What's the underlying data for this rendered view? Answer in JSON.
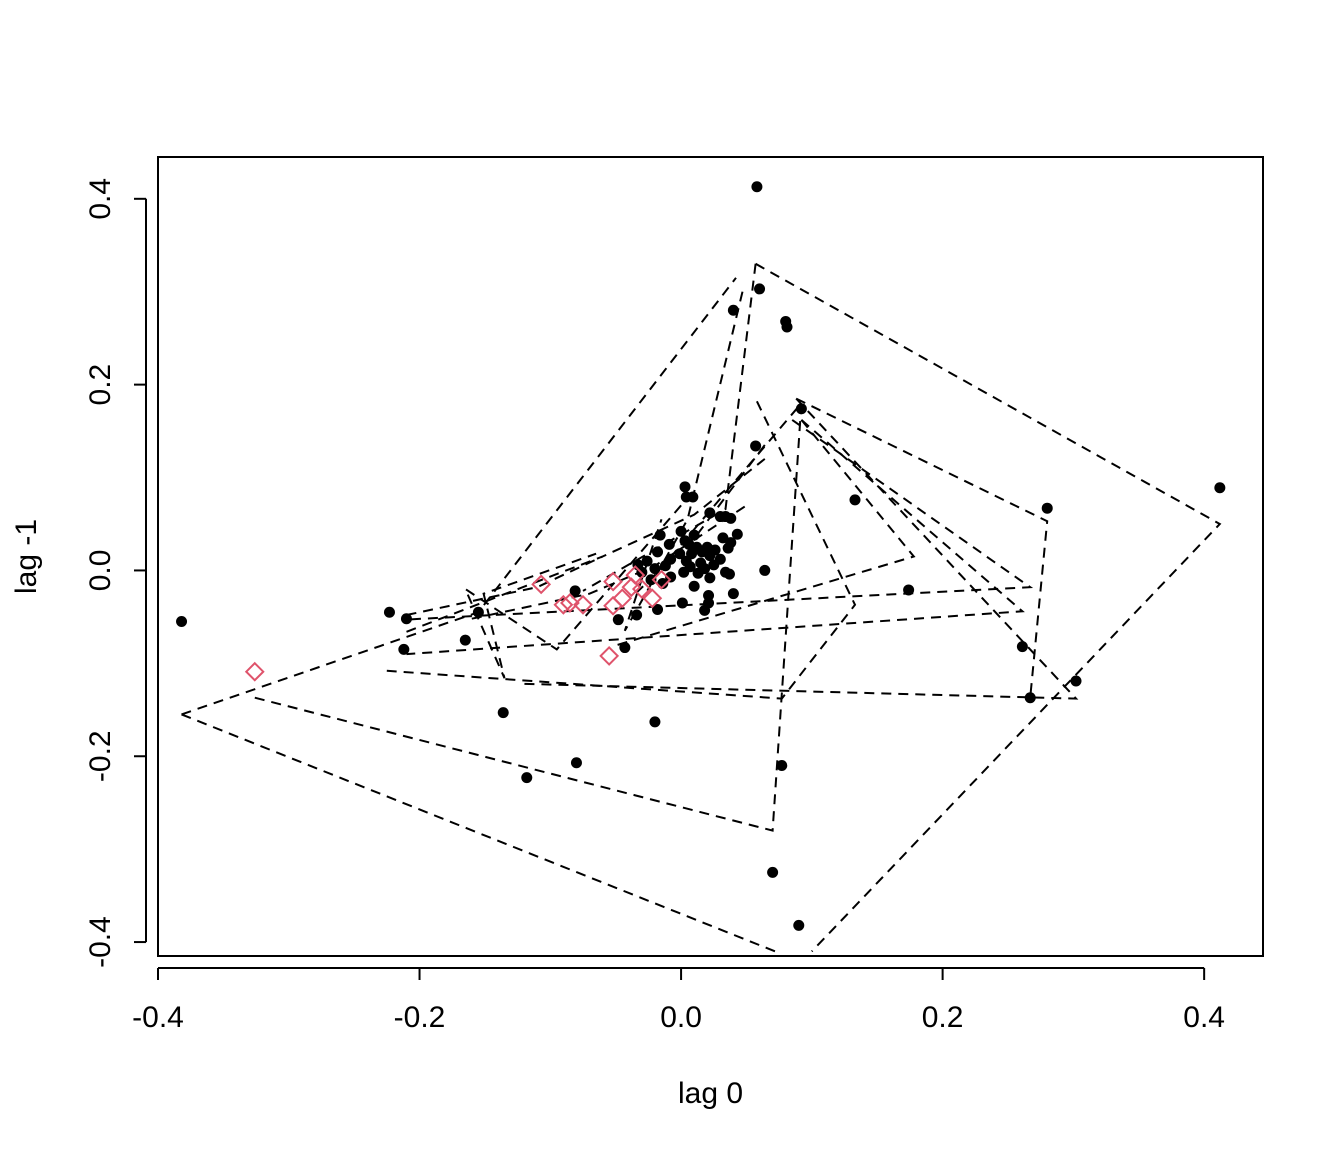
{
  "chart_data": {
    "type": "scatter",
    "title": "",
    "xlabel": "lag 0",
    "ylabel": "lag -1",
    "xlim": [
      -0.4,
      0.445
    ],
    "ylim": [
      -0.415,
      0.445
    ],
    "x_ticks": [
      -0.4,
      -0.2,
      0.0,
      0.2,
      0.4
    ],
    "y_ticks": [
      -0.4,
      -0.2,
      0.0,
      0.2,
      0.4
    ],
    "x_tick_labels": [
      "-0.4",
      "-0.2",
      "0.0",
      "0.2",
      "0.4"
    ],
    "y_tick_labels": [
      "-0.4",
      "-0.2",
      "0.0",
      "0.2",
      "0.4"
    ],
    "grid": false,
    "legend": "none",
    "colors": {
      "points": "#000000",
      "highlighted": "#df536b",
      "hull_lines": "#000000"
    },
    "series": [
      {
        "marker": "filled-circle",
        "points": [
          [
            0.058,
            0.413
          ],
          [
            0.06,
            0.303
          ],
          [
            0.04,
            0.28
          ],
          [
            0.08,
            0.268
          ],
          [
            0.081,
            0.262
          ],
          [
            0.092,
            0.174
          ],
          [
            0.057,
            0.134
          ],
          [
            0.412,
            0.089
          ],
          [
            0.003,
            0.09
          ],
          [
            0.133,
            0.076
          ],
          [
            0.004,
            0.079
          ],
          [
            0.009,
            0.079
          ],
          [
            0.28,
            0.067
          ],
          [
            0.022,
            0.062
          ],
          [
            0.03,
            0.058
          ],
          [
            0.034,
            0.058
          ],
          [
            0.038,
            0.056
          ],
          [
            0.0,
            0.042
          ],
          [
            0.043,
            0.039
          ],
          [
            -0.016,
            0.038
          ],
          [
            0.01,
            0.038
          ],
          [
            0.003,
            0.032
          ],
          [
            0.032,
            0.035
          ],
          [
            0.038,
            0.03
          ],
          [
            0.036,
            0.024
          ],
          [
            0.006,
            0.028
          ],
          [
            0.012,
            0.025
          ],
          [
            -0.009,
            0.028
          ],
          [
            0.02,
            0.025
          ],
          [
            0.026,
            0.022
          ],
          [
            0.016,
            0.02
          ],
          [
            -0.018,
            0.02
          ],
          [
            -0.001,
            0.018
          ],
          [
            0.008,
            0.018
          ],
          [
            0.022,
            0.016
          ],
          [
            0.03,
            0.012
          ],
          [
            -0.008,
            0.012
          ],
          [
            0.004,
            0.01
          ],
          [
            -0.026,
            0.01
          ],
          [
            0.015,
            0.008
          ],
          [
            0.025,
            0.006
          ],
          [
            -0.033,
            0.006
          ],
          [
            -0.012,
            0.005
          ],
          [
            0.007,
            0.004
          ],
          [
            0.018,
            0.002
          ],
          [
            0.064,
            0.0
          ],
          [
            -0.02,
            0.002
          ],
          [
            0.034,
            -0.002
          ],
          [
            -0.03,
            -0.002
          ],
          [
            0.002,
            -0.002
          ],
          [
            0.013,
            -0.003
          ],
          [
            0.037,
            -0.004
          ],
          [
            0.022,
            -0.008
          ],
          [
            -0.008,
            -0.007
          ],
          [
            -0.023,
            -0.01
          ],
          [
            -0.014,
            -0.014
          ],
          [
            0.01,
            -0.017
          ],
          [
            0.174,
            -0.021
          ],
          [
            0.04,
            -0.025
          ],
          [
            0.021,
            -0.027
          ],
          [
            0.001,
            -0.035
          ],
          [
            0.021,
            -0.035
          ],
          [
            -0.081,
            -0.022
          ],
          [
            -0.155,
            -0.045
          ],
          [
            -0.018,
            -0.042
          ],
          [
            0.018,
            -0.043
          ],
          [
            -0.034,
            -0.048
          ],
          [
            -0.048,
            -0.053
          ],
          [
            -0.223,
            -0.045
          ],
          [
            -0.21,
            -0.052
          ],
          [
            -0.165,
            -0.075
          ],
          [
            -0.382,
            -0.055
          ],
          [
            -0.212,
            -0.085
          ],
          [
            -0.043,
            -0.083
          ],
          [
            0.261,
            -0.082
          ],
          [
            0.267,
            -0.137
          ],
          [
            0.302,
            -0.119
          ],
          [
            -0.136,
            -0.153
          ],
          [
            -0.02,
            -0.163
          ],
          [
            -0.08,
            -0.207
          ],
          [
            0.077,
            -0.21
          ],
          [
            -0.118,
            -0.223
          ],
          [
            0.07,
            -0.325
          ],
          [
            0.09,
            -0.382
          ]
        ]
      },
      {
        "marker": "open-diamond",
        "points": [
          [
            -0.326,
            -0.109
          ],
          [
            -0.107,
            -0.015
          ],
          [
            -0.09,
            -0.037
          ],
          [
            -0.085,
            -0.035
          ],
          [
            -0.075,
            -0.037
          ],
          [
            -0.052,
            -0.012
          ],
          [
            -0.052,
            -0.038
          ],
          [
            -0.045,
            -0.03
          ],
          [
            -0.038,
            -0.018
          ],
          [
            -0.035,
            -0.005
          ],
          [
            -0.03,
            -0.02
          ],
          [
            -0.022,
            -0.03
          ],
          [
            -0.015,
            -0.01
          ],
          [
            -0.055,
            -0.092
          ]
        ]
      }
    ],
    "hull_lines": [
      [
        [
          0.057,
          0.33
        ],
        [
          0.412,
          0.05
        ],
        [
          0.1,
          -0.41
        ]
      ],
      [
        [
          0.057,
          0.33
        ],
        [
          0.034,
          0.066
        ],
        [
          -0.075,
          -0.022
        ]
      ],
      [
        [
          -0.382,
          -0.155
        ],
        [
          0.072,
          -0.41
        ]
      ],
      [
        [
          -0.382,
          -0.155
        ],
        [
          -0.155,
          -0.045
        ],
        [
          0.042,
          0.315
        ]
      ],
      [
        [
          0.088,
          0.185
        ],
        [
          0.28,
          0.053
        ],
        [
          0.267,
          -0.137
        ]
      ],
      [
        [
          0.088,
          0.185
        ],
        [
          0.302,
          -0.138
        ],
        [
          -0.121,
          -0.122
        ]
      ],
      [
        [
          0.092,
          0.162
        ],
        [
          0.261,
          -0.044
        ],
        [
          -0.21,
          -0.09
        ]
      ],
      [
        [
          0.092,
          0.162
        ],
        [
          0.178,
          0.015
        ],
        [
          -0.053,
          -0.082
        ]
      ],
      [
        [
          0.085,
          0.162
        ],
        [
          0.267,
          -0.018
        ],
        [
          -0.212,
          -0.053
        ]
      ],
      [
        [
          0.058,
          0.182
        ],
        [
          0.133,
          -0.037
        ],
        [
          0.077,
          -0.138
        ],
        [
          -0.225,
          -0.108
        ]
      ],
      [
        [
          -0.326,
          -0.137
        ],
        [
          0.07,
          -0.28
        ],
        [
          0.092,
          0.18
        ],
        [
          -0.007,
          0.016
        ]
      ],
      [
        [
          0.047,
          0.3
        ],
        [
          0.005,
          0.055
        ],
        [
          -0.043,
          -0.065
        ],
        [
          -0.015,
          0.055
        ]
      ],
      [
        [
          0.064,
          0.135
        ],
        [
          0.012,
          0.038
        ],
        [
          -0.035,
          -0.025
        ]
      ],
      [
        [
          0.0,
          0.07
        ],
        [
          -0.095,
          -0.085
        ],
        [
          -0.165,
          -0.02
        ],
        [
          -0.135,
          -0.116
        ],
        [
          -0.151,
          -0.025
        ],
        [
          -0.065,
          0.018
        ]
      ],
      [
        [
          -0.21,
          -0.048
        ],
        [
          -0.11,
          -0.018
        ],
        [
          -0.06,
          0.015
        ]
      ],
      [
        [
          -0.21,
          -0.066
        ],
        [
          -0.06,
          0.015
        ],
        [
          0.01,
          0.06
        ],
        [
          0.064,
          0.12
        ]
      ],
      [
        [
          -0.16,
          -0.052
        ],
        [
          -0.07,
          -0.025
        ],
        [
          -0.02,
          0.005
        ],
        [
          0.05,
          0.07
        ]
      ]
    ]
  }
}
